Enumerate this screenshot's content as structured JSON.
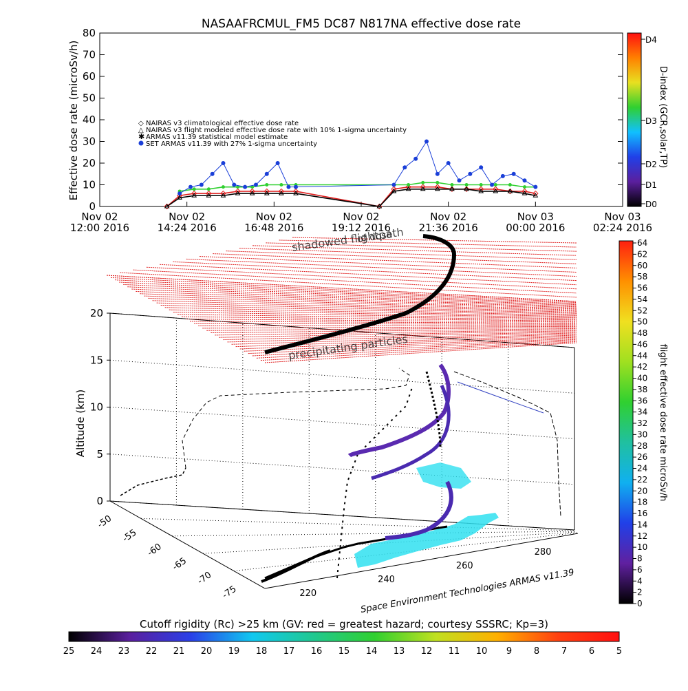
{
  "chart_data": [
    {
      "type": "scatter",
      "title": "NASAAFRCMUL_FM5 DC87 N817NA effective dose rate",
      "ylabel": "Effective dose rate (microSv/h)",
      "ylim": [
        0,
        80
      ],
      "yticks": [
        "0",
        "10",
        "20",
        "30",
        "40",
        "50",
        "60",
        "70",
        "80"
      ],
      "xlim": [
        0,
        14.4
      ],
      "xticks": [
        {
          "x": 0.0,
          "line1": "Nov 02",
          "line2": "12:00 2016"
        },
        {
          "x": 2.4,
          "line1": "Nov 02",
          "line2": "14:24 2016"
        },
        {
          "x": 4.8,
          "line1": "Nov 02",
          "line2": "16:48 2016"
        },
        {
          "x": 7.2,
          "line1": "Nov 02",
          "line2": "19:12 2016"
        },
        {
          "x": 9.6,
          "line1": "Nov 02",
          "line2": "21:36 2016"
        },
        {
          "x": 12.0,
          "line1": "Nov 03",
          "line2": "00:00 2016"
        },
        {
          "x": 14.4,
          "line1": "Nov 03",
          "line2": "02:24 2016"
        }
      ],
      "legend_position": "left",
      "series": [
        {
          "name": "NAIRAS v3 climatological effective dose rate",
          "marker": "diamond",
          "color": "#e02020",
          "x": [
            1.85,
            2.2,
            2.6,
            3.0,
            3.4,
            3.8,
            4.2,
            4.6,
            5.0,
            5.4,
            7.7,
            8.1,
            8.5,
            8.9,
            9.3,
            9.7,
            10.1,
            10.5,
            10.9,
            11.3,
            11.7,
            12.0
          ],
          "y": [
            0,
            5,
            6,
            6,
            6,
            7,
            7,
            7,
            7,
            7,
            0,
            8,
            9,
            9,
            9,
            8,
            8,
            8,
            8,
            7,
            7,
            6
          ]
        },
        {
          "name": "NAIRAS v3 flight modeled effective dose rate with 10% 1-sigma uncertainty",
          "marker": "triangle",
          "color": "#000000",
          "x": [
            1.85,
            2.2,
            2.6,
            3.0,
            3.4,
            3.8,
            4.2,
            4.6,
            5.0,
            5.4,
            7.7,
            8.1,
            8.5,
            8.9,
            9.3,
            9.7,
            10.1,
            10.5,
            10.9,
            11.3,
            11.7,
            12.0
          ],
          "y": [
            0,
            4,
            5,
            5,
            5,
            6,
            6,
            6,
            6,
            6,
            0,
            7,
            8,
            8,
            8,
            8,
            8,
            7,
            7,
            7,
            6,
            5
          ]
        },
        {
          "name": "ARMAS v11.39 statistical model estimate",
          "marker": "star",
          "color": "#30d030",
          "x": [
            2.2,
            2.6,
            3.0,
            3.4,
            3.8,
            4.2,
            4.6,
            5.0,
            5.4,
            8.1,
            8.5,
            8.9,
            9.3,
            9.7,
            10.1,
            10.5,
            10.9,
            11.3,
            11.7,
            12.0
          ],
          "y": [
            7,
            8,
            8,
            9,
            9,
            9,
            10,
            10,
            10,
            10,
            10,
            11,
            11,
            10,
            10,
            10,
            10,
            10,
            9,
            9
          ]
        },
        {
          "name": "SET ARMAS v11.39 with 27% 1-sigma uncertainty",
          "marker": "circle",
          "color": "#1a3fd8",
          "x": [
            2.2,
            2.5,
            2.8,
            3.1,
            3.4,
            3.7,
            4.0,
            4.3,
            4.6,
            4.9,
            5.2,
            5.4,
            8.1,
            8.4,
            8.7,
            9.0,
            9.3,
            9.6,
            9.9,
            10.2,
            10.5,
            10.8,
            11.1,
            11.4,
            11.7,
            12.0
          ],
          "y": [
            6,
            9,
            10,
            15,
            20,
            10,
            9,
            10,
            15,
            20,
            9,
            9,
            10,
            18,
            22,
            30,
            15,
            20,
            12,
            15,
            18,
            10,
            14,
            15,
            12,
            9
          ]
        }
      ],
      "colorbar": {
        "label": "D-index (GCR,solar,TP)",
        "ticks": [
          "D0",
          "D1",
          "D2",
          "D3",
          "D4"
        ],
        "colors": [
          "#000000",
          "#5b1f9e",
          "#2040e8",
          "#10c0ff",
          "#30d030",
          "#e8e020",
          "#ff8000",
          "#ff1010"
        ]
      }
    },
    {
      "type": "3d-line",
      "ylabel": "Altitude (km)",
      "zticks": [
        "0",
        "5",
        "10",
        "15",
        "20"
      ],
      "latticks": [
        "-50",
        "-55",
        "-60",
        "-65",
        "-70",
        "-75"
      ],
      "lonticks": [
        "220",
        "240",
        "260",
        "280"
      ],
      "annotations": {
        "shadowed": "shadowed flightpath",
        "shadowed2": "of dose",
        "precip": "precipitating particles"
      },
      "credit": "Space Environment Technologies ARMAS v11.39",
      "colorbar": {
        "label": "flight effective dose rate microSv/h",
        "ticks": [
          "0",
          "2",
          "4",
          "6",
          "8",
          "10",
          "12",
          "14",
          "16",
          "18",
          "20",
          "22",
          "24",
          "26",
          "28",
          "30",
          "32",
          "34",
          "36",
          "38",
          "40",
          "42",
          "44",
          "46",
          "48",
          "50",
          "52",
          "54",
          "56",
          "58",
          "60",
          "62",
          "64"
        ],
        "colors": [
          "#000000",
          "#6020a0",
          "#2040e8",
          "#10b0f0",
          "#20c0a0",
          "#30d030",
          "#a0e020",
          "#f0e020",
          "#ff9000",
          "#ff2010"
        ]
      }
    }
  ],
  "bottom_bar": {
    "label": "Cutoff rigidity (Rc) >25 km (GV: red = greatest hazard; courtesy SSSRC; Kp=3)",
    "ticks": [
      "25",
      "24",
      "23",
      "22",
      "21",
      "20",
      "19",
      "18",
      "17",
      "16",
      "15",
      "14",
      "13",
      "12",
      "11",
      "10",
      "9",
      "8",
      "7",
      "6",
      "5"
    ],
    "colors": [
      "#000000",
      "#5a1f9e",
      "#2a40e8",
      "#10c8f0",
      "#20c890",
      "#30d030",
      "#c0e020",
      "#ffb000",
      "#ff4010",
      "#ff1010"
    ]
  }
}
